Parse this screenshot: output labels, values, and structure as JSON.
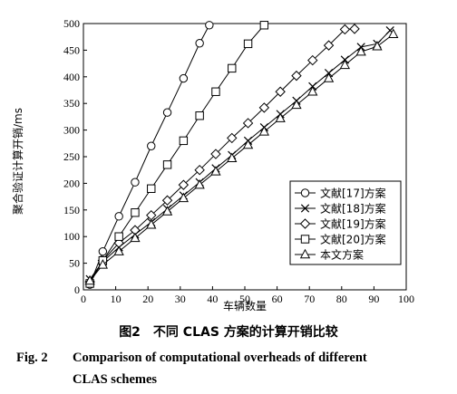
{
  "chart_data": {
    "type": "line",
    "xlabel": "车辆数量",
    "ylabel": "聚合验证计算开销/ms",
    "xlim": [
      0,
      100
    ],
    "ylim": [
      0,
      500
    ],
    "xticks": [
      "0",
      "10",
      "20",
      "30",
      "40",
      "50",
      "60",
      "70",
      "80",
      "90",
      "100"
    ],
    "yticks": [
      "0",
      "50",
      "100",
      "150",
      "200",
      "250",
      "300",
      "350",
      "400",
      "450",
      "500"
    ],
    "grid": false,
    "legend_position": "bottom-right",
    "series": [
      {
        "name": "文献[17]方案",
        "marker": "circle",
        "x": [
          2,
          6,
          11,
          16,
          21,
          26,
          31,
          36,
          39
        ],
        "y": [
          10,
          72,
          138,
          202,
          270,
          333,
          397,
          463,
          497
        ]
      },
      {
        "name": "文献[18]方案",
        "marker": "x",
        "x": [
          2,
          6,
          11,
          16,
          21,
          26,
          31,
          36,
          41,
          46,
          51,
          56,
          61,
          66,
          71,
          76,
          81,
          86,
          91,
          95
        ],
        "y": [
          20,
          53,
          80,
          104,
          127,
          152,
          177,
          202,
          228,
          253,
          280,
          305,
          330,
          355,
          382,
          407,
          432,
          456,
          462,
          487
        ]
      },
      {
        "name": "文献[19]方案",
        "marker": "diamond",
        "x": [
          2,
          6,
          11,
          16,
          21,
          26,
          31,
          36,
          41,
          46,
          51,
          56,
          61,
          66,
          71,
          76,
          81,
          84
        ],
        "y": [
          15,
          55,
          88,
          112,
          140,
          168,
          197,
          225,
          255,
          285,
          313,
          342,
          372,
          402,
          431,
          459,
          489,
          490
        ]
      },
      {
        "name": "文献[20]方案",
        "marker": "square",
        "x": [
          2,
          6,
          11,
          16,
          21,
          26,
          31,
          36,
          41,
          46,
          51,
          56
        ],
        "y": [
          12,
          55,
          100,
          145,
          190,
          235,
          280,
          327,
          372,
          416,
          462,
          497
        ]
      },
      {
        "name": "本文方案",
        "marker": "triangle",
        "x": [
          2,
          6,
          11,
          16,
          21,
          26,
          31,
          36,
          41,
          46,
          51,
          56,
          61,
          66,
          71,
          76,
          81,
          86,
          91,
          96
        ],
        "y": [
          17,
          47,
          72,
          97,
          122,
          147,
          172,
          197,
          222,
          247,
          272,
          297,
          322,
          347,
          372,
          397,
          422,
          447,
          457,
          480
        ]
      }
    ]
  },
  "caption": {
    "cn": "图2　不同 CLAS 方案的计算开销比较",
    "en_label": "Fig. 2",
    "en_line1": "Comparison of computational overheads of different",
    "en_line2": "CLAS schemes"
  }
}
